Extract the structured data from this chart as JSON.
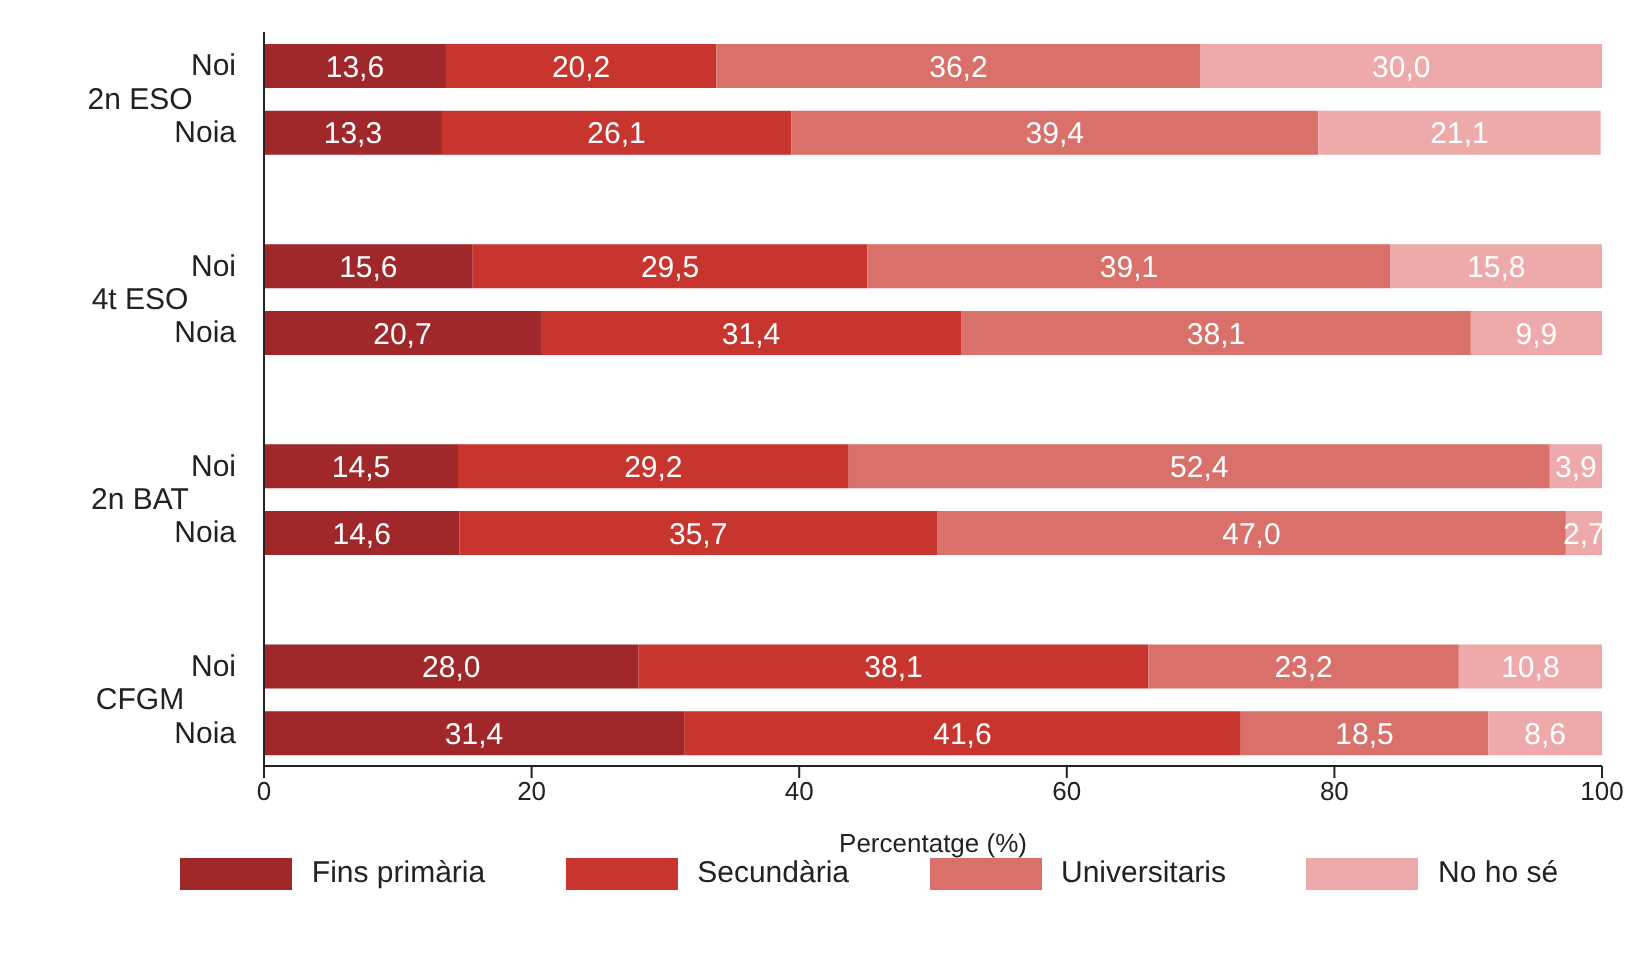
{
  "chart_data": {
    "type": "bar",
    "orientation": "horizontal",
    "stacked": true,
    "categories": [
      "Noi",
      "Noia",
      null,
      "Noi",
      "Noia",
      null,
      "Noi",
      "Noia",
      null,
      "Noi",
      "Noia"
    ],
    "annotations": [
      "2n ESO",
      "4t ESO",
      "2n BAT",
      "CFGM"
    ],
    "series": [
      {
        "name": "Fins primària",
        "color": "#a0282a",
        "values": [
          13.6,
          13.3,
          null,
          15.6,
          20.7,
          null,
          14.5,
          14.6,
          null,
          28.0,
          31.4
        ],
        "value_labels": [
          "13,6",
          "13,3",
          null,
          "15,6",
          "20,7",
          null,
          "14,5",
          "14,6",
          null,
          "28,0",
          "31,4"
        ]
      },
      {
        "name": "Secundària",
        "color": "#c8342e",
        "values": [
          20.2,
          26.1,
          null,
          29.5,
          31.4,
          null,
          29.2,
          35.7,
          null,
          38.1,
          41.6
        ],
        "value_labels": [
          "20,2",
          "26,1",
          null,
          "29,5",
          "31,4",
          null,
          "29,2",
          "35,7",
          null,
          "38,1",
          "41,6"
        ]
      },
      {
        "name": "Universitaris",
        "color": "#d9706a",
        "values": [
          36.2,
          39.4,
          null,
          39.1,
          38.1,
          null,
          52.4,
          47.0,
          null,
          23.2,
          18.5
        ],
        "value_labels": [
          "36,2",
          "39,4",
          null,
          "39,1",
          "38,1",
          null,
          "52,4",
          "47,0",
          null,
          "23,2",
          "18,5"
        ]
      },
      {
        "name": "No ho sé",
        "color": "#eeaaab",
        "values": [
          30.0,
          21.1,
          null,
          15.8,
          9.9,
          null,
          3.9,
          2.7,
          null,
          10.8,
          8.6
        ],
        "value_labels": [
          "30,0",
          "21,1",
          null,
          "15,8",
          "9,9",
          null,
          "3,9",
          "2,7",
          null,
          "10,8",
          "8,6"
        ]
      }
    ],
    "xlim": [
      0,
      100
    ],
    "xticks": [
      0,
      20,
      40,
      60,
      80,
      100
    ],
    "xlabel": "Percentatge (%)",
    "grid": false,
    "legend": "bottom"
  }
}
